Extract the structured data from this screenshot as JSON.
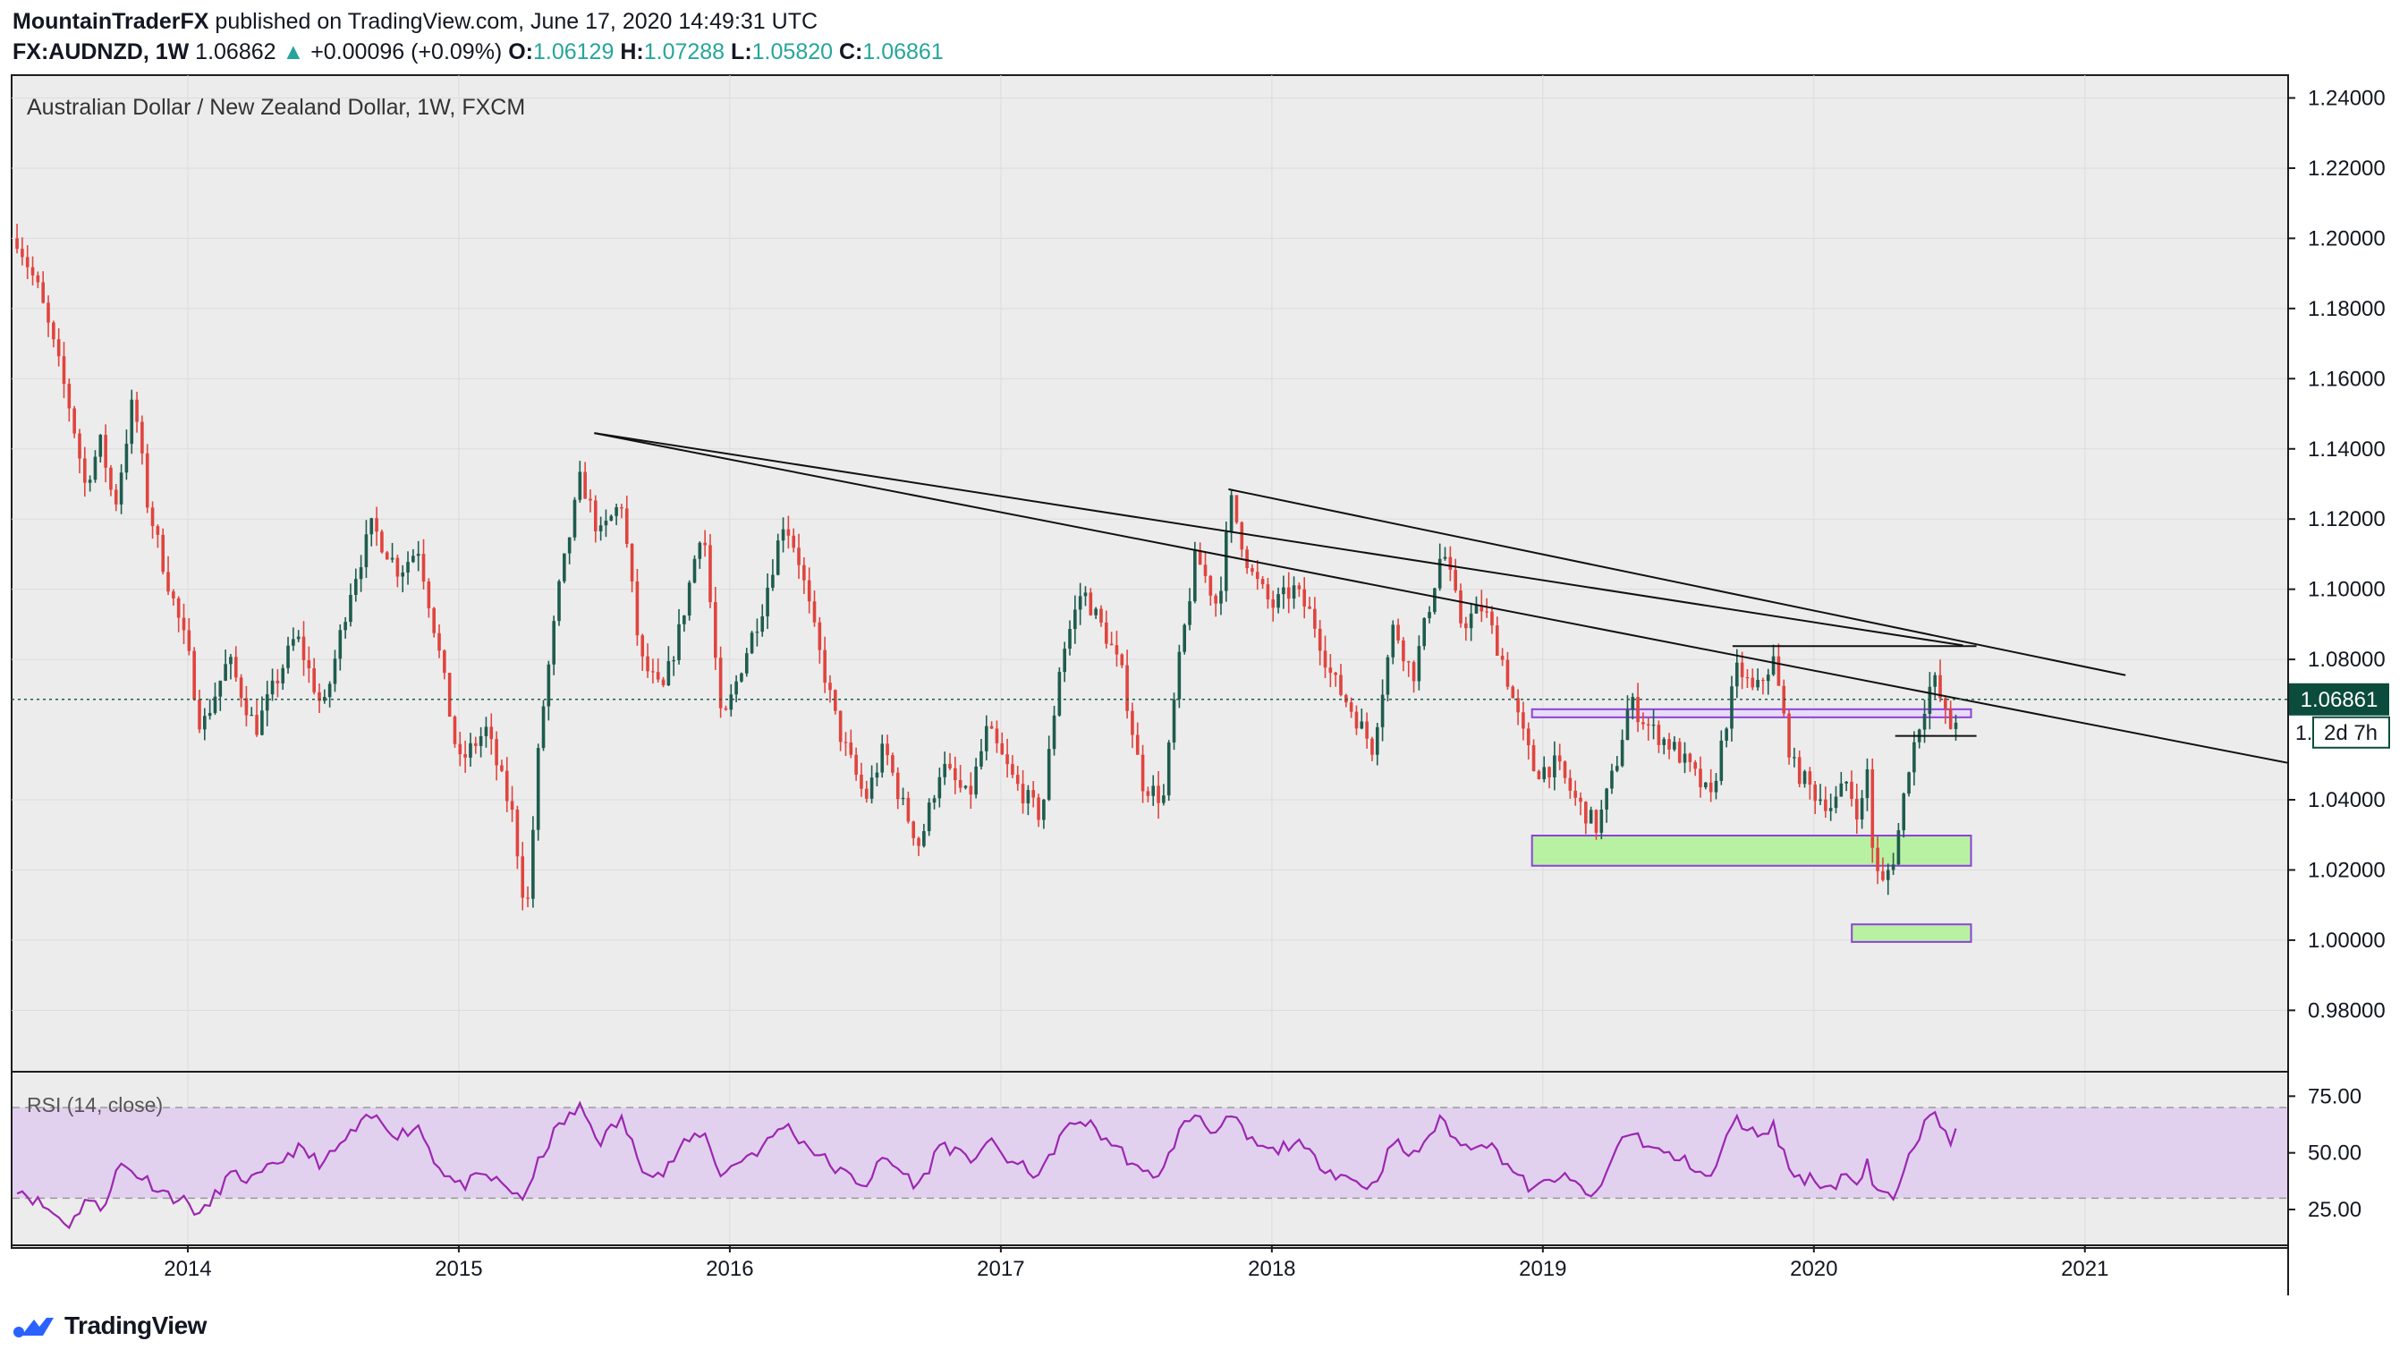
{
  "header": {
    "author": "MountainTraderFX",
    "published": "published on TradingView.com, June 17, 2020 14:49:31 UTC",
    "symbol": "FX:AUDNZD, 1W",
    "last": "1.06862",
    "change": "+0.00096 (+0.09%)",
    "open_label": "O:",
    "open": "1.06129",
    "high_label": "H:",
    "high": "1.07288",
    "low_label": "L:",
    "low": "1.05820",
    "close_label": "C:",
    "close": "1.06861"
  },
  "footer": {
    "brand": "TradingView"
  },
  "chart_data": {
    "type": "candlestick",
    "title": "Australian Dollar / New Zealand Dollar, 1W, FXCM",
    "x_ticks": [
      "2014",
      "2015",
      "2016",
      "2017",
      "2018",
      "2019",
      "2020",
      "2021"
    ],
    "x_tick_values": [
      2014.0,
      2015.0,
      2016.0,
      2017.0,
      2018.0,
      2019.0,
      2020.0,
      2021.0
    ],
    "xlim": [
      2013.35,
      2021.75
    ],
    "ylim": [
      0.9625,
      1.2465
    ],
    "y_ticks": [
      "1.24000",
      "1.22000",
      "1.20000",
      "1.18000",
      "1.16000",
      "1.14000",
      "1.12000",
      "1.10000",
      "1.08000",
      "1.04000",
      "1.02000",
      "1.00000",
      "0.98000"
    ],
    "y_tick_values": [
      1.24,
      1.22,
      1.2,
      1.18,
      1.16,
      1.14,
      1.12,
      1.1,
      1.08,
      1.04,
      1.02,
      1.0,
      0.98
    ],
    "last_price_label": "1.06861",
    "last_price": 1.06861,
    "countdown_label": "2d 7h",
    "covered_tick_label": "1.",
    "colors": {
      "up": "#1e5c4e",
      "down": "#e0443e",
      "rsi": "#9c27b0",
      "rsi_band": "#e1d1ef",
      "zone_green": "#b9f1a3",
      "zone_border": "#8a43d8",
      "price_badge": "#0b4c3c"
    },
    "keypoints": [
      [
        2013.37,
        1.2
      ],
      [
        2013.45,
        1.185
      ],
      [
        2013.52,
        1.165
      ],
      [
        2013.57,
        1.15
      ],
      [
        2013.62,
        1.13
      ],
      [
        2013.68,
        1.142
      ],
      [
        2013.73,
        1.123
      ],
      [
        2013.8,
        1.155
      ],
      [
        2013.85,
        1.125
      ],
      [
        2013.92,
        1.104
      ],
      [
        2014.0,
        1.082
      ],
      [
        2014.05,
        1.06
      ],
      [
        2014.15,
        1.08
      ],
      [
        2014.25,
        1.06
      ],
      [
        2014.4,
        1.087
      ],
      [
        2014.5,
        1.065
      ],
      [
        2014.6,
        1.1
      ],
      [
        2014.68,
        1.118
      ],
      [
        2014.78,
        1.105
      ],
      [
        2014.85,
        1.112
      ],
      [
        2014.92,
        1.085
      ],
      [
        2015.0,
        1.05
      ],
      [
        2015.1,
        1.06
      ],
      [
        2015.2,
        1.035
      ],
      [
        2015.25,
        1.006
      ],
      [
        2015.3,
        1.06
      ],
      [
        2015.37,
        1.1
      ],
      [
        2015.45,
        1.132
      ],
      [
        2015.52,
        1.115
      ],
      [
        2015.6,
        1.125
      ],
      [
        2015.67,
        1.08
      ],
      [
        2015.75,
        1.07
      ],
      [
        2015.82,
        1.09
      ],
      [
        2015.9,
        1.12
      ],
      [
        2015.97,
        1.06
      ],
      [
        2016.05,
        1.08
      ],
      [
        2016.12,
        1.095
      ],
      [
        2016.2,
        1.12
      ],
      [
        2016.25,
        1.11
      ],
      [
        2016.32,
        1.085
      ],
      [
        2016.4,
        1.06
      ],
      [
        2016.5,
        1.04
      ],
      [
        2016.57,
        1.055
      ],
      [
        2016.63,
        1.04
      ],
      [
        2016.7,
        1.027
      ],
      [
        2016.78,
        1.05
      ],
      [
        2016.88,
        1.04
      ],
      [
        2016.95,
        1.06
      ],
      [
        2017.05,
        1.045
      ],
      [
        2017.15,
        1.035
      ],
      [
        2017.22,
        1.08
      ],
      [
        2017.3,
        1.1
      ],
      [
        2017.4,
        1.085
      ],
      [
        2017.45,
        1.075
      ],
      [
        2017.52,
        1.045
      ],
      [
        2017.6,
        1.04
      ],
      [
        2017.65,
        1.075
      ],
      [
        2017.72,
        1.11
      ],
      [
        2017.8,
        1.095
      ],
      [
        2017.85,
        1.125
      ],
      [
        2017.92,
        1.105
      ],
      [
        2018.0,
        1.095
      ],
      [
        2018.08,
        1.1
      ],
      [
        2018.15,
        1.092
      ],
      [
        2018.22,
        1.075
      ],
      [
        2018.3,
        1.065
      ],
      [
        2018.37,
        1.055
      ],
      [
        2018.45,
        1.09
      ],
      [
        2018.52,
        1.075
      ],
      [
        2018.58,
        1.095
      ],
      [
        2018.63,
        1.112
      ],
      [
        2018.7,
        1.09
      ],
      [
        2018.78,
        1.095
      ],
      [
        2018.85,
        1.08
      ],
      [
        2018.92,
        1.06
      ],
      [
        2018.97,
        1.048
      ],
      [
        2019.05,
        1.05
      ],
      [
        2019.12,
        1.04
      ],
      [
        2019.2,
        1.032
      ],
      [
        2019.27,
        1.05
      ],
      [
        2019.32,
        1.068
      ],
      [
        2019.4,
        1.06
      ],
      [
        2019.48,
        1.055
      ],
      [
        2019.55,
        1.048
      ],
      [
        2019.62,
        1.04
      ],
      [
        2019.67,
        1.06
      ],
      [
        2019.72,
        1.078
      ],
      [
        2019.78,
        1.07
      ],
      [
        2019.85,
        1.08
      ],
      [
        2019.92,
        1.05
      ],
      [
        2020.0,
        1.042
      ],
      [
        2020.07,
        1.038
      ],
      [
        2020.12,
        1.045
      ],
      [
        2020.17,
        1.035
      ],
      [
        2020.2,
        1.05
      ],
      [
        2020.22,
        1.022
      ],
      [
        2020.25,
        1.015
      ],
      [
        2020.3,
        1.025
      ],
      [
        2020.35,
        1.05
      ],
      [
        2020.4,
        1.065
      ],
      [
        2020.44,
        1.075
      ],
      [
        2020.47,
        1.068
      ],
      [
        2020.5,
        1.06
      ],
      [
        2020.54,
        1.066
      ]
    ],
    "rsi": {
      "label": "RSI (14, close)",
      "ylim": [
        10,
        85
      ],
      "y_ticks": [
        "75.00",
        "50.00",
        "25.00"
      ],
      "y_tick_values": [
        75,
        50,
        25
      ],
      "band": [
        30,
        70
      ],
      "keypoints": [
        [
          2013.37,
          35
        ],
        [
          2013.45,
          28
        ],
        [
          2013.52,
          22
        ],
        [
          2013.57,
          18
        ],
        [
          2013.62,
          30
        ],
        [
          2013.68,
          25
        ],
        [
          2013.75,
          45
        ],
        [
          2013.85,
          38
        ],
        [
          2013.92,
          32
        ],
        [
          2014.0,
          28
        ],
        [
          2014.05,
          22
        ],
        [
          2014.15,
          40
        ],
        [
          2014.25,
          38
        ],
        [
          2014.4,
          52
        ],
        [
          2014.5,
          45
        ],
        [
          2014.6,
          58
        ],
        [
          2014.68,
          66
        ],
        [
          2014.78,
          58
        ],
        [
          2014.85,
          62
        ],
        [
          2014.92,
          45
        ],
        [
          2015.0,
          35
        ],
        [
          2015.1,
          40
        ],
        [
          2015.2,
          33
        ],
        [
          2015.25,
          30
        ],
        [
          2015.3,
          48
        ],
        [
          2015.37,
          62
        ],
        [
          2015.45,
          70
        ],
        [
          2015.52,
          55
        ],
        [
          2015.6,
          65
        ],
        [
          2015.67,
          45
        ],
        [
          2015.75,
          40
        ],
        [
          2015.82,
          52
        ],
        [
          2015.9,
          60
        ],
        [
          2015.97,
          40
        ],
        [
          2016.05,
          48
        ],
        [
          2016.12,
          52
        ],
        [
          2016.2,
          63
        ],
        [
          2016.25,
          57
        ],
        [
          2016.32,
          50
        ],
        [
          2016.4,
          42
        ],
        [
          2016.5,
          36
        ],
        [
          2016.57,
          48
        ],
        [
          2016.63,
          42
        ],
        [
          2016.7,
          35
        ],
        [
          2016.78,
          55
        ],
        [
          2016.88,
          46
        ],
        [
          2016.95,
          55
        ],
        [
          2017.05,
          45
        ],
        [
          2017.15,
          40
        ],
        [
          2017.22,
          58
        ],
        [
          2017.3,
          65
        ],
        [
          2017.4,
          55
        ],
        [
          2017.45,
          50
        ],
        [
          2017.52,
          40
        ],
        [
          2017.6,
          42
        ],
        [
          2017.65,
          58
        ],
        [
          2017.72,
          68
        ],
        [
          2017.8,
          58
        ],
        [
          2017.85,
          66
        ],
        [
          2017.92,
          55
        ],
        [
          2018.0,
          50
        ],
        [
          2018.08,
          55
        ],
        [
          2018.15,
          48
        ],
        [
          2018.22,
          42
        ],
        [
          2018.3,
          38
        ],
        [
          2018.37,
          35
        ],
        [
          2018.45,
          55
        ],
        [
          2018.52,
          48
        ],
        [
          2018.58,
          58
        ],
        [
          2018.63,
          65
        ],
        [
          2018.7,
          52
        ],
        [
          2018.78,
          56
        ],
        [
          2018.85,
          48
        ],
        [
          2018.92,
          38
        ],
        [
          2018.97,
          33
        ],
        [
          2019.05,
          40
        ],
        [
          2019.12,
          36
        ],
        [
          2019.2,
          30
        ],
        [
          2019.27,
          52
        ],
        [
          2019.32,
          60
        ],
        [
          2019.4,
          52
        ],
        [
          2019.48,
          48
        ],
        [
          2019.55,
          45
        ],
        [
          2019.62,
          38
        ],
        [
          2019.67,
          55
        ],
        [
          2019.72,
          65
        ],
        [
          2019.78,
          58
        ],
        [
          2019.85,
          62
        ],
        [
          2019.92,
          40
        ],
        [
          2020.0,
          38
        ],
        [
          2020.07,
          35
        ],
        [
          2020.12,
          42
        ],
        [
          2020.17,
          33
        ],
        [
          2020.2,
          48
        ],
        [
          2020.22,
          34
        ],
        [
          2020.25,
          30
        ],
        [
          2020.3,
          32
        ],
        [
          2020.35,
          52
        ],
        [
          2020.4,
          60
        ],
        [
          2020.44,
          68
        ],
        [
          2020.47,
          62
        ],
        [
          2020.5,
          56
        ],
        [
          2020.54,
          59
        ]
      ]
    },
    "annotations": {
      "trendlines": [
        {
          "from": [
            2015.5,
            1.1445
          ],
          "to": [
            2020.55,
            1.084
          ]
        },
        {
          "from": [
            2015.5,
            1.1445
          ],
          "to": [
            2021.75,
            1.0505
          ]
        },
        {
          "from": [
            2017.84,
            1.1285
          ],
          "to": [
            2021.15,
            1.0755
          ]
        }
      ],
      "hlines": [
        {
          "from": 2019.7,
          "to": 2020.6,
          "y": 1.0838
        },
        {
          "from": 2020.3,
          "to": 2020.6,
          "y": 1.0582
        }
      ],
      "zones": [
        {
          "x0": 2018.96,
          "x1": 2020.58,
          "y0": 1.0635,
          "y1": 1.0658,
          "fill": "#e8dcf8"
        },
        {
          "x0": 2018.96,
          "x1": 2020.58,
          "y0": 1.0212,
          "y1": 1.0298,
          "fill": "#b9f1a3"
        },
        {
          "x0": 2020.14,
          "x1": 2020.58,
          "y0": 0.9995,
          "y1": 1.0045,
          "fill": "#b9f1a3"
        }
      ]
    }
  }
}
